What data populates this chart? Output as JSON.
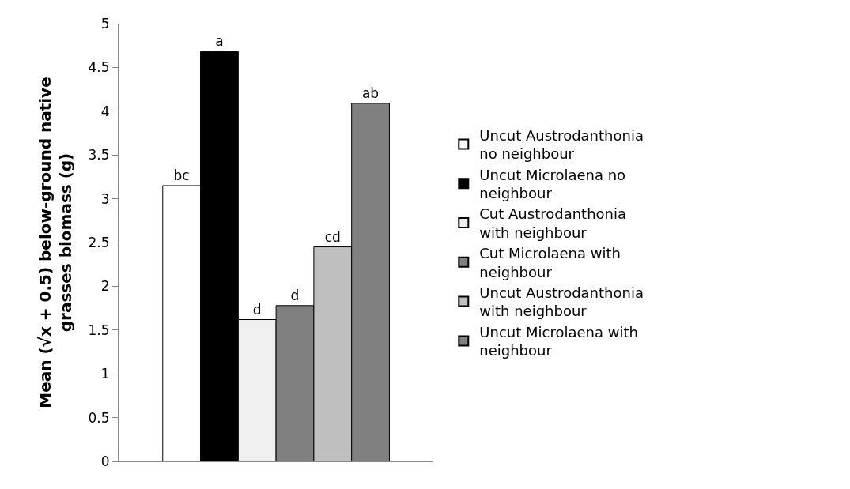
{
  "chart_data": {
    "type": "bar",
    "ylabel": "Mean (√x + 0.5) below-ground native grasses biomass (g)",
    "categories": [
      null
    ],
    "series": [
      {
        "name": "Uncut Austrodanthonia no neighbour",
        "color": "#ffffff",
        "values": [
          3.15
        ],
        "value_labels": [
          "bc"
        ]
      },
      {
        "name": "Uncut Microlaena no neighbour",
        "color": "#000000",
        "values": [
          4.68
        ],
        "value_labels": [
          "a"
        ]
      },
      {
        "name": "Cut Austrodanthonia with neighbour",
        "color": "#f0f0f0",
        "values": [
          1.62
        ],
        "value_labels": [
          "d"
        ]
      },
      {
        "name": "Cut Microlaena with neighbour",
        "color": "#808080",
        "values": [
          1.78
        ],
        "value_labels": [
          "d"
        ]
      },
      {
        "name": "Uncut Austrodanthonia with neighbour",
        "color": "#bfbfbf",
        "values": [
          2.45
        ],
        "value_labels": [
          "cd"
        ]
      },
      {
        "name": "Uncut Microlaena with neighbour",
        "color": "#808080",
        "values": [
          4.09
        ],
        "value_labels": [
          "ab"
        ]
      }
    ],
    "ylim": [
      0,
      5
    ],
    "yticks": [
      0,
      0.5,
      1,
      1.5,
      2,
      2.5,
      3,
      3.5,
      4,
      4.5,
      5
    ],
    "legend": "right"
  }
}
